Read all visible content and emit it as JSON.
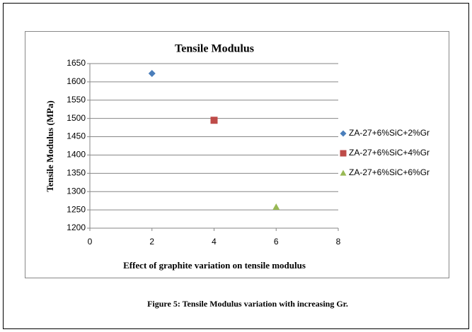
{
  "chart_data": {
    "type": "scatter",
    "title": "Tensile Modulus",
    "x_label": "Effect of graphite variation on tensile modulus",
    "y_label": "Tensile Modulus (MPa)",
    "series": [
      {
        "name": "ZA-27+6%SiC+2%Gr",
        "color": "#4a7ebb",
        "marker": "diamond",
        "x": [
          2
        ],
        "values": [
          1623
        ]
      },
      {
        "name": "ZA-27+6%SiC+4%Gr",
        "color": "#be4b48",
        "marker": "square",
        "x": [
          4
        ],
        "values": [
          1495
        ]
      },
      {
        "name": "ZA-27+6%SiC+6%Gr",
        "color": "#98b954",
        "marker": "triangle",
        "x": [
          6
        ],
        "values": [
          1258
        ]
      }
    ],
    "xlim": [
      0,
      8
    ],
    "xticks": [
      0,
      2,
      4,
      6,
      8
    ],
    "ylim": [
      1200,
      1650
    ],
    "yticks": [
      1200,
      1250,
      1300,
      1350,
      1400,
      1450,
      1500,
      1550,
      1600,
      1650
    ],
    "grid": true,
    "legend": "right"
  },
  "caption": "Figure 5: Tensile Modulus variation with increasing Gr."
}
